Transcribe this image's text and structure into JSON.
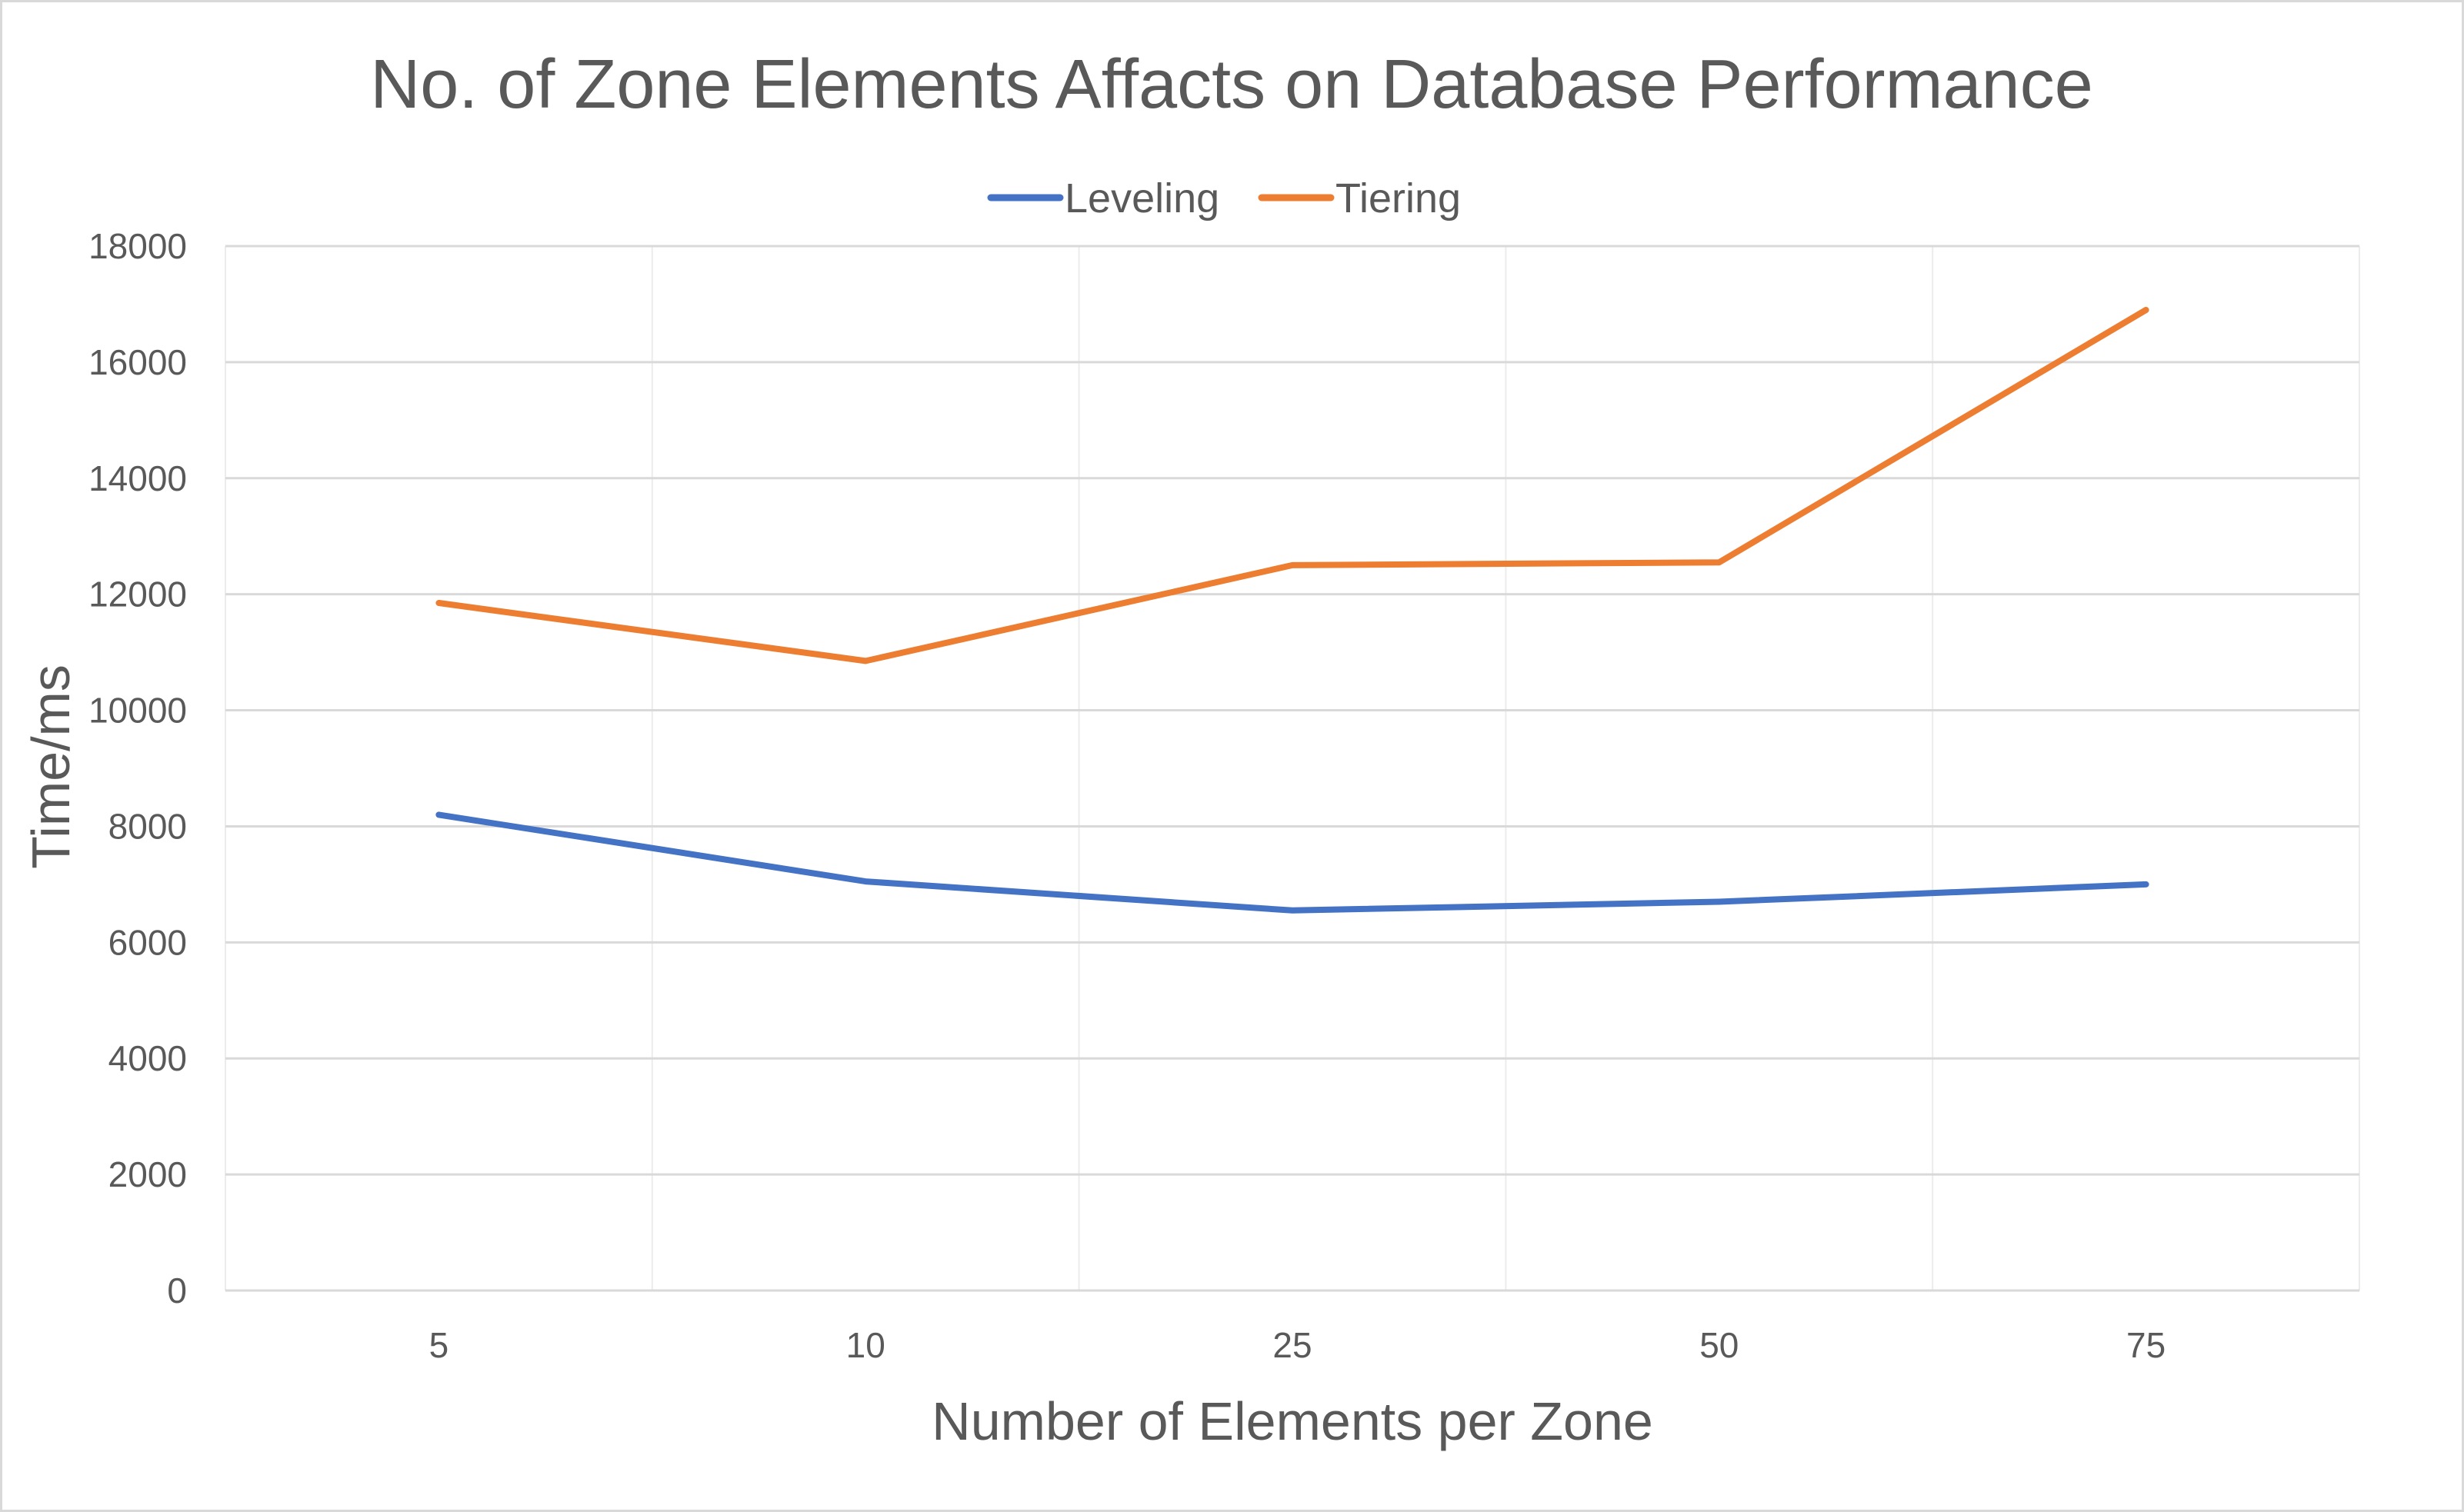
{
  "chart_data": {
    "type": "line",
    "title": "No. of Zone Elements Affacts on Database Performance",
    "xlabel": "Number of Elements per Zone",
    "ylabel": "Time/ms",
    "categories": [
      "5",
      "10",
      "25",
      "50",
      "75"
    ],
    "ylim": [
      0,
      18000
    ],
    "yticks": [
      0,
      2000,
      4000,
      6000,
      8000,
      10000,
      12000,
      14000,
      16000,
      18000
    ],
    "grid": true,
    "legend": "top-center",
    "series": [
      {
        "name": "Leveling",
        "color": "#4472C4",
        "values": [
          8200,
          7050,
          6550,
          6700,
          7000
        ]
      },
      {
        "name": "Tiering",
        "color": "#ED7D31",
        "values": [
          11850,
          10850,
          12500,
          12550,
          16900
        ]
      }
    ]
  }
}
